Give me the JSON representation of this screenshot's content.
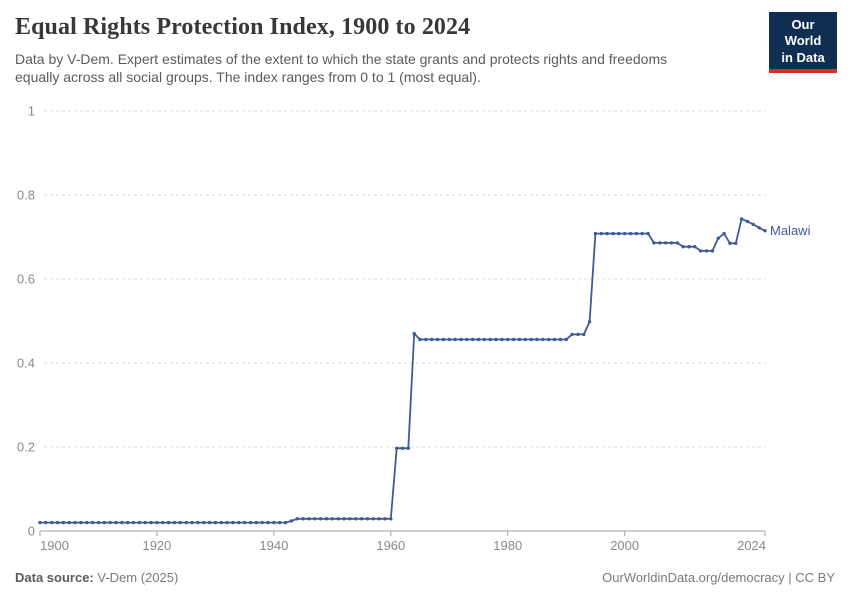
{
  "header": {
    "title": "Equal Rights Protection Index, 1900 to 2024",
    "subtitle_line1": "Data by V-Dem. Expert estimates of the extent to which the state grants and protects rights and freedoms",
    "subtitle_line2": "equally across all social groups. The index ranges from 0 to 1 (most equal).",
    "logo": {
      "line1": "Our World",
      "line2": "in Data",
      "bg_color": "#0f2e52",
      "accent_color": "#cf2f24"
    }
  },
  "chart_data": {
    "type": "line",
    "title": "Equal Rights Protection Index, 1900 to 2024",
    "xlabel": "",
    "ylabel": "",
    "xlim": [
      1900,
      2024
    ],
    "ylim": [
      0,
      1
    ],
    "x_ticks": [
      1900,
      1920,
      1940,
      1960,
      1980,
      2000,
      2024
    ],
    "y_ticks": [
      0,
      0.2,
      0.4,
      0.6,
      0.8,
      1
    ],
    "grid": "horizontal-dashed",
    "legend": "end-of-line-label",
    "marker": "dot",
    "series": [
      {
        "name": "Malawi",
        "color": "#3d5b98",
        "x_start": 1900,
        "x_end": 2024,
        "x_step": 1,
        "values": [
          0.02,
          0.02,
          0.02,
          0.02,
          0.02,
          0.02,
          0.02,
          0.02,
          0.02,
          0.02,
          0.02,
          0.02,
          0.02,
          0.02,
          0.02,
          0.02,
          0.02,
          0.02,
          0.02,
          0.02,
          0.02,
          0.02,
          0.02,
          0.02,
          0.02,
          0.02,
          0.02,
          0.02,
          0.02,
          0.02,
          0.02,
          0.02,
          0.02,
          0.02,
          0.02,
          0.02,
          0.02,
          0.02,
          0.02,
          0.02,
          0.02,
          0.02,
          0.02,
          0.024,
          0.029,
          0.029,
          0.029,
          0.029,
          0.029,
          0.029,
          0.029,
          0.029,
          0.029,
          0.029,
          0.029,
          0.029,
          0.029,
          0.029,
          0.029,
          0.029,
          0.029,
          0.197,
          0.197,
          0.197,
          0.47,
          0.456,
          0.456,
          0.456,
          0.456,
          0.456,
          0.456,
          0.456,
          0.456,
          0.456,
          0.456,
          0.456,
          0.456,
          0.456,
          0.456,
          0.456,
          0.456,
          0.456,
          0.456,
          0.456,
          0.456,
          0.456,
          0.456,
          0.456,
          0.456,
          0.456,
          0.456,
          0.468,
          0.468,
          0.468,
          0.498,
          0.708,
          0.708,
          0.708,
          0.708,
          0.708,
          0.708,
          0.708,
          0.708,
          0.708,
          0.708,
          0.686,
          0.686,
          0.686,
          0.686,
          0.686,
          0.677,
          0.677,
          0.677,
          0.667,
          0.667,
          0.667,
          0.697,
          0.708,
          0.685,
          0.685,
          0.743,
          0.737,
          0.73,
          0.722,
          0.715
        ]
      }
    ]
  },
  "footer": {
    "source_label": "Data source:",
    "source_value": " V-Dem (2025)",
    "rights": "OurWorldinData.org/democracy | CC BY"
  }
}
